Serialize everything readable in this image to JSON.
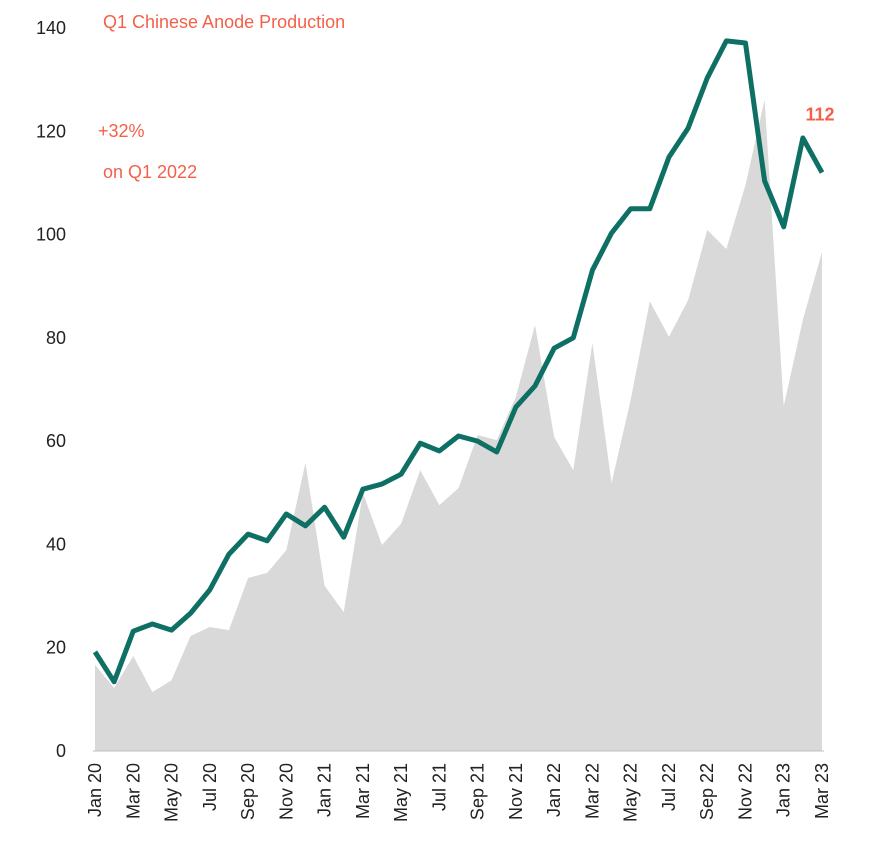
{
  "chart_data": {
    "type": "line",
    "title": "Q1 Chinese Anode Production",
    "headline": "+32%",
    "subtitle": "on Q1 2022",
    "categories": [
      "Jan 20",
      null,
      "Mar 20",
      null,
      "May 20",
      null,
      "Jul 20",
      null,
      "Sep 20",
      null,
      "Nov 20",
      null,
      "Jan 21",
      null,
      "Mar 21",
      null,
      "May 21",
      null,
      "Jul 21",
      null,
      "Sep 21",
      null,
      "Nov 21",
      null,
      "Jan 22",
      null,
      "Mar 22",
      null,
      "May 22",
      null,
      "Jul 22",
      null,
      "Sep 22",
      null,
      "Nov 22",
      null,
      "Jan 23",
      null,
      "Mar 23"
    ],
    "series": [
      {
        "type": "area",
        "color": "#d9d9d9",
        "values": [
          16.7,
          12.2,
          18.4,
          11.4,
          13.7,
          22.3,
          24,
          23.4,
          33.5,
          34.5,
          38.9,
          55.8,
          32,
          26.9,
          50,
          39.9,
          44,
          54.4,
          47.6,
          50.9,
          61.2,
          60.2,
          68.6,
          82.5,
          60.8,
          54.4,
          79,
          51.9,
          68,
          87.1,
          80.2,
          87.3,
          100.9,
          97.2,
          109.6,
          126.1,
          66.8,
          83.5,
          96.6
        ]
      },
      {
        "type": "line",
        "color": "#0e7065",
        "values": [
          19.2,
          13.4,
          23.2,
          24.6,
          23.4,
          26.7,
          31.2,
          38.1,
          42,
          40.7,
          45.9,
          43.6,
          47.2,
          41.4,
          50.7,
          51.7,
          53.6,
          59.6,
          58.1,
          61,
          60,
          57.9,
          66.6,
          70.7,
          78,
          80,
          93.1,
          100.3,
          105,
          105,
          115,
          120.6,
          130.3,
          137.5,
          137.1,
          110.4,
          101.5,
          118.7,
          112
        ],
        "value_labels": [
          null,
          null,
          null,
          null,
          null,
          null,
          null,
          null,
          null,
          null,
          null,
          null,
          null,
          null,
          null,
          null,
          null,
          null,
          null,
          null,
          null,
          null,
          null,
          null,
          null,
          null,
          null,
          null,
          null,
          null,
          null,
          null,
          null,
          null,
          null,
          null,
          null,
          null,
          "112"
        ]
      }
    ],
    "ylim": [
      0,
      140
    ],
    "yticks": [
      0,
      20,
      40,
      60,
      80,
      100,
      120,
      140
    ],
    "accent_color": "#f4604a",
    "grid": false
  }
}
